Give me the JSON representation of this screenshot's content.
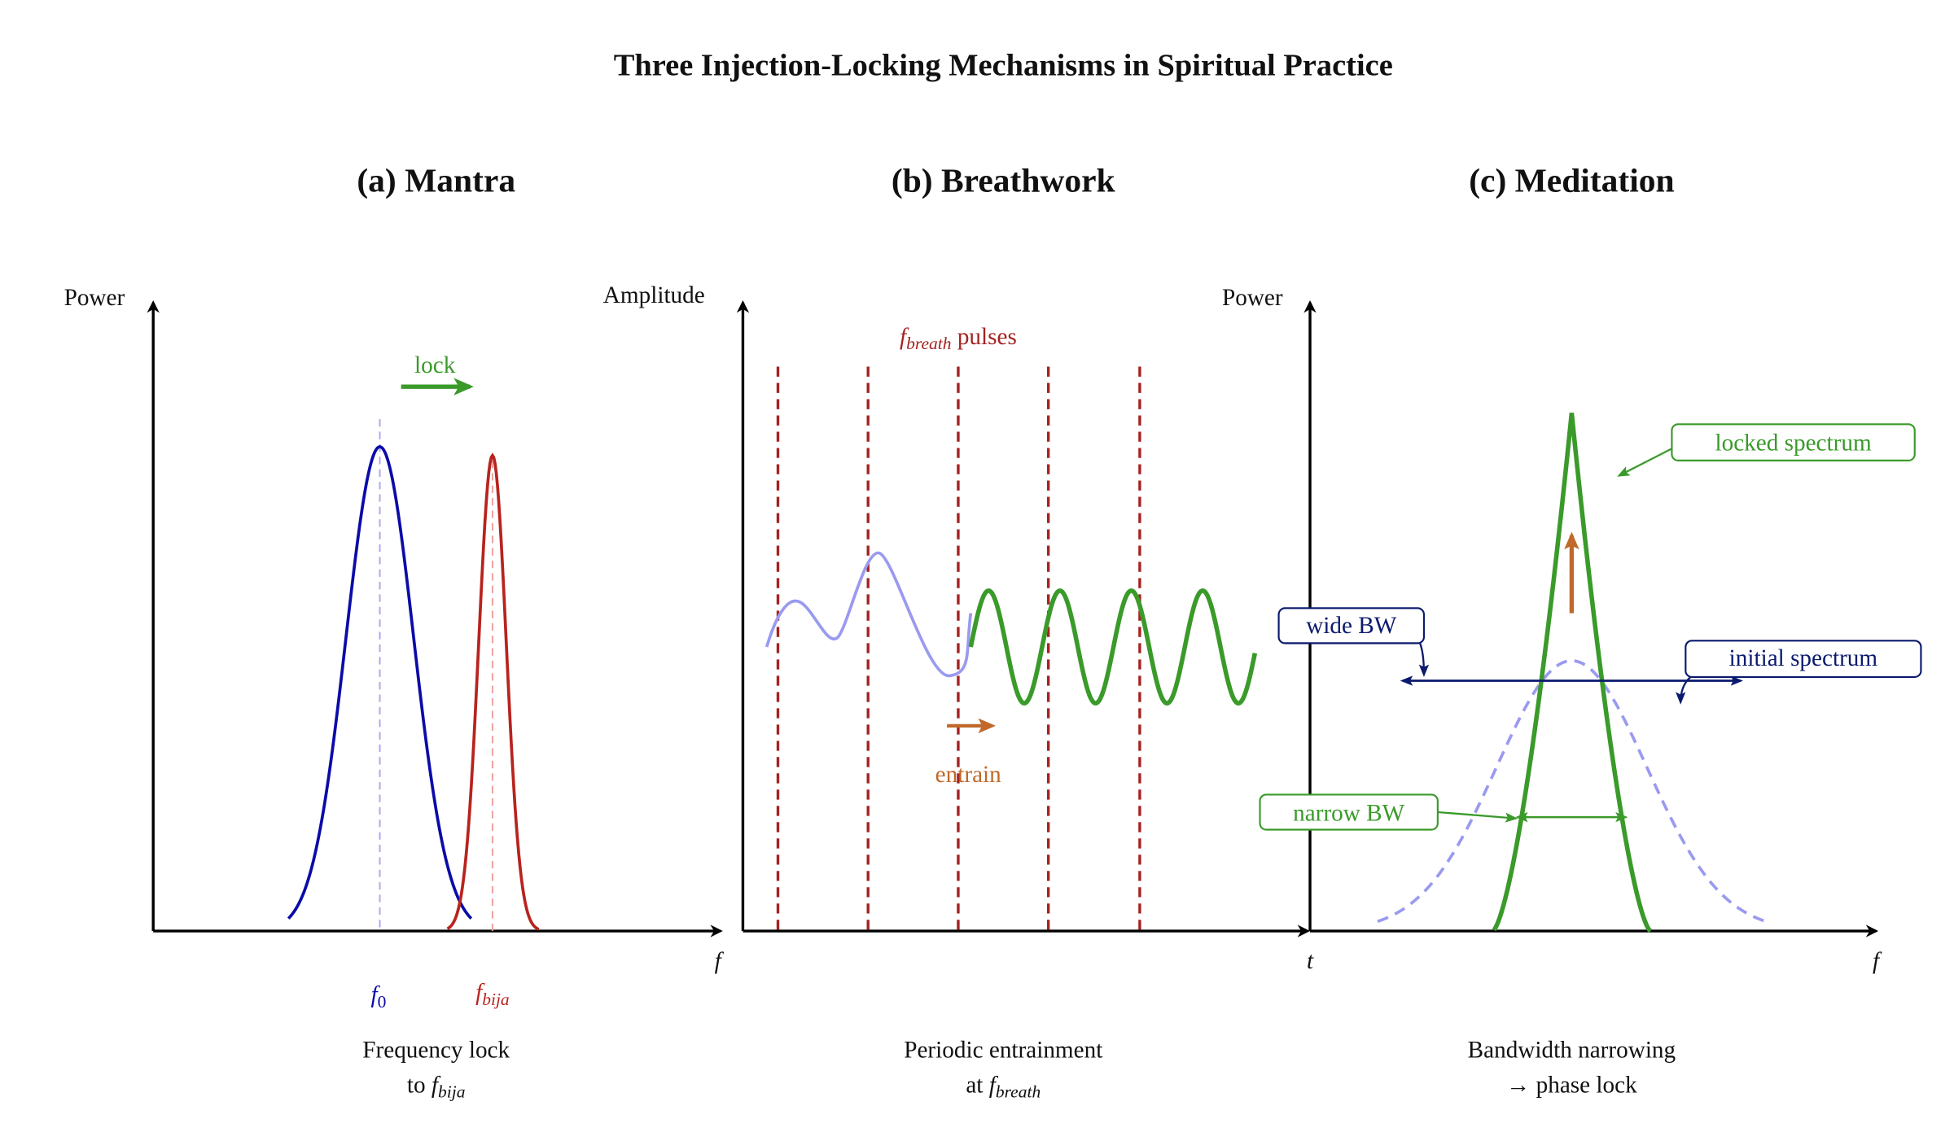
{
  "title": "Three Injection-Locking Mechanisms in Spiritual Practice",
  "panels": [
    {
      "title": "(a) Mantra",
      "y_label": "Power",
      "x_label": "f",
      "annotations": {
        "arrow_label": "lock",
        "peak_1": {
          "base": "f",
          "sub": "0"
        },
        "peak_2": {
          "base": "f",
          "sub": "bija"
        }
      },
      "caption": [
        {
          "text": "Frequency lock"
        },
        {
          "prefix": "to ",
          "base": "f",
          "sub": "bija"
        }
      ]
    },
    {
      "title": "(b) Breathwork",
      "y_label": "Amplitude",
      "x_label": "t",
      "annotations": {
        "pulses": {
          "base": "f",
          "sub": "breath",
          "suffix": " pulses"
        },
        "arrow_label": "entrain"
      },
      "caption": [
        {
          "text": "Periodic entrainment"
        },
        {
          "prefix": "at ",
          "base": "f",
          "sub": "breath"
        }
      ]
    },
    {
      "title": "(c) Meditation",
      "y_label": "Power",
      "x_label": "f",
      "annotations": {
        "locked": "locked spectrum",
        "wide": "wide BW",
        "initial": "initial spectrum",
        "narrow": "narrow BW"
      },
      "caption": [
        {
          "text": "Bandwidth narrowing"
        },
        {
          "text": "→ phase lock"
        }
      ]
    }
  ]
}
